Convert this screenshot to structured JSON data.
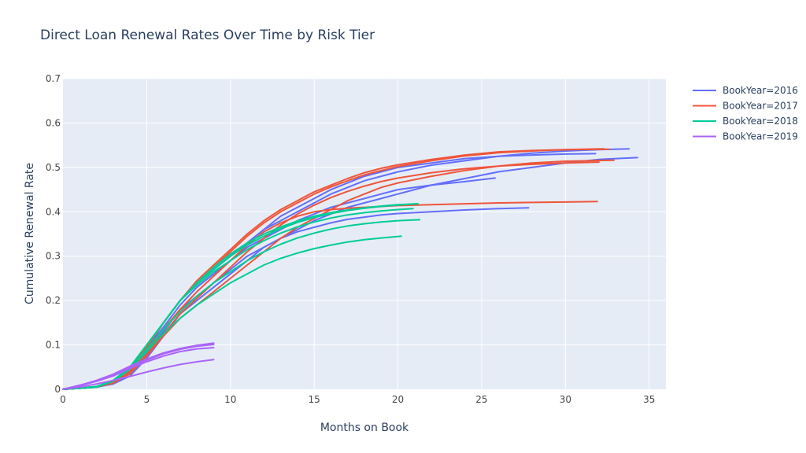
{
  "chart_data": {
    "type": "line",
    "title": "Direct Loan Renewal Rates Over Time by Risk Tier",
    "xlabel": "Months on Book",
    "ylabel": "Cumulative Renewal Rate",
    "xlim": [
      0,
      36
    ],
    "ylim": [
      0,
      0.7
    ],
    "xticks": [
      0,
      5,
      10,
      15,
      20,
      25,
      30,
      35
    ],
    "xtick_labels": [
      "0",
      "5",
      "10",
      "15",
      "20",
      "25",
      "30",
      "35"
    ],
    "yticks": [
      0,
      0.1,
      0.2,
      0.3,
      0.4,
      0.5,
      0.6,
      0.7
    ],
    "ytick_labels": [
      "0",
      "0.1",
      "0.2",
      "0.3",
      "0.4",
      "0.5",
      "0.6",
      "0.7"
    ],
    "grid": true,
    "legend_position": "top-right",
    "legend": [
      {
        "label": "BookYear=2016",
        "color": "#636efa"
      },
      {
        "label": "BookYear=2017",
        "color": "#ef553b"
      },
      {
        "label": "BookYear=2018",
        "color": "#00cc96"
      },
      {
        "label": "BookYear=2019",
        "color": "#ab63fa"
      }
    ],
    "series": [
      {
        "group": "BookYear=2016",
        "x": [
          0,
          2,
          3,
          4,
          5,
          6,
          7,
          8,
          9,
          10,
          11,
          12,
          13,
          14,
          15,
          16,
          17,
          18,
          19,
          20,
          22,
          24,
          26,
          28,
          30,
          32,
          33.8
        ],
        "y": [
          0,
          0.005,
          0.015,
          0.04,
          0.09,
          0.15,
          0.2,
          0.24,
          0.27,
          0.3,
          0.33,
          0.36,
          0.38,
          0.4,
          0.42,
          0.44,
          0.455,
          0.47,
          0.48,
          0.49,
          0.505,
          0.515,
          0.525,
          0.532,
          0.537,
          0.54,
          0.542
        ]
      },
      {
        "group": "BookYear=2016",
        "x": [
          0,
          2,
          3,
          4,
          5,
          6,
          7,
          8,
          9,
          10,
          11,
          12,
          13,
          14,
          15,
          16,
          17,
          18,
          19,
          20,
          22,
          24,
          26,
          28,
          30,
          32,
          34.3
        ],
        "y": [
          0,
          0.005,
          0.012,
          0.03,
          0.07,
          0.12,
          0.17,
          0.2,
          0.23,
          0.26,
          0.29,
          0.32,
          0.34,
          0.36,
          0.38,
          0.395,
          0.41,
          0.42,
          0.43,
          0.44,
          0.46,
          0.475,
          0.49,
          0.5,
          0.51,
          0.518,
          0.522
        ]
      },
      {
        "group": "BookYear=2016",
        "x": [
          0,
          2,
          3,
          4,
          5,
          6,
          7,
          8,
          9,
          10,
          11,
          12,
          13,
          14,
          15,
          16,
          17,
          18,
          19,
          20,
          21,
          22,
          24,
          25.8
        ],
        "y": [
          0,
          0.005,
          0.015,
          0.04,
          0.09,
          0.14,
          0.19,
          0.23,
          0.26,
          0.29,
          0.32,
          0.34,
          0.36,
          0.38,
          0.395,
          0.41,
          0.42,
          0.43,
          0.44,
          0.45,
          0.455,
          0.46,
          0.468,
          0.476
        ]
      },
      {
        "group": "BookYear=2016",
        "x": [
          0,
          2,
          3,
          4,
          5,
          6,
          7,
          8,
          9,
          10,
          11,
          12,
          13,
          14,
          15,
          16,
          17,
          18,
          19,
          20,
          22,
          24,
          26,
          27.8
        ],
        "y": [
          0,
          0.005,
          0.012,
          0.035,
          0.08,
          0.13,
          0.18,
          0.21,
          0.24,
          0.27,
          0.3,
          0.32,
          0.34,
          0.355,
          0.365,
          0.375,
          0.383,
          0.388,
          0.393,
          0.396,
          0.4,
          0.404,
          0.407,
          0.409
        ]
      },
      {
        "group": "BookYear=2016",
        "x": [
          0,
          2,
          3,
          4,
          5,
          6,
          7,
          8,
          9,
          10,
          11,
          12,
          13,
          14,
          15,
          16,
          17,
          18,
          19,
          20,
          22,
          24,
          26,
          28,
          30,
          31.8
        ],
        "y": [
          0,
          0.005,
          0.015,
          0.04,
          0.09,
          0.15,
          0.2,
          0.24,
          0.27,
          0.3,
          0.33,
          0.36,
          0.39,
          0.41,
          0.43,
          0.45,
          0.465,
          0.48,
          0.49,
          0.5,
          0.51,
          0.52,
          0.525,
          0.528,
          0.53,
          0.531
        ]
      },
      {
        "group": "BookYear=2017",
        "x": [
          0,
          2,
          3,
          4,
          5,
          6,
          7,
          8,
          9,
          10,
          11,
          12,
          13,
          14,
          15,
          16,
          17,
          18,
          19,
          20,
          22,
          24,
          26,
          28,
          30,
          32.3
        ],
        "y": [
          0,
          0.006,
          0.018,
          0.045,
          0.095,
          0.15,
          0.2,
          0.245,
          0.28,
          0.315,
          0.35,
          0.38,
          0.405,
          0.425,
          0.445,
          0.46,
          0.475,
          0.488,
          0.498,
          0.506,
          0.518,
          0.528,
          0.535,
          0.538,
          0.54,
          0.542
        ]
      },
      {
        "group": "BookYear=2017",
        "x": [
          0,
          2,
          3,
          4,
          5,
          6,
          7,
          8,
          9,
          10,
          11,
          12,
          13,
          14,
          15,
          16,
          17,
          18,
          19,
          20,
          22,
          24,
          26,
          28,
          30,
          32.6
        ],
        "y": [
          0,
          0.006,
          0.018,
          0.045,
          0.095,
          0.15,
          0.2,
          0.24,
          0.275,
          0.31,
          0.345,
          0.375,
          0.4,
          0.42,
          0.44,
          0.456,
          0.47,
          0.483,
          0.493,
          0.502,
          0.515,
          0.526,
          0.533,
          0.537,
          0.54,
          0.541
        ]
      },
      {
        "group": "BookYear=2017",
        "x": [
          0,
          2,
          3,
          4,
          5,
          6,
          7,
          8,
          9,
          10,
          11,
          12,
          13,
          14,
          15,
          16,
          17,
          18,
          19,
          20,
          22,
          24,
          26,
          28,
          30,
          32.9
        ],
        "y": [
          0,
          0.005,
          0.014,
          0.035,
          0.075,
          0.12,
          0.16,
          0.19,
          0.22,
          0.25,
          0.28,
          0.31,
          0.34,
          0.365,
          0.385,
          0.405,
          0.425,
          0.44,
          0.455,
          0.465,
          0.48,
          0.493,
          0.503,
          0.51,
          0.514,
          0.516
        ]
      },
      {
        "group": "BookYear=2017",
        "x": [
          0,
          2,
          3,
          4,
          5,
          6,
          7,
          8,
          9,
          10,
          11,
          12,
          13,
          14,
          15,
          16,
          17,
          18,
          19,
          20,
          22,
          24,
          26,
          28,
          30,
          31.9
        ],
        "y": [
          0,
          0.005,
          0.016,
          0.04,
          0.085,
          0.135,
          0.18,
          0.22,
          0.255,
          0.29,
          0.325,
          0.355,
          0.375,
          0.39,
          0.4,
          0.405,
          0.408,
          0.41,
          0.412,
          0.414,
          0.416,
          0.418,
          0.42,
          0.421,
          0.422,
          0.423
        ]
      },
      {
        "group": "BookYear=2017",
        "x": [
          0,
          2,
          3,
          4,
          5,
          6,
          7,
          8,
          9,
          10,
          11,
          12,
          13,
          14,
          15,
          16,
          17,
          18,
          19,
          20,
          22,
          24,
          26,
          28,
          30,
          32
        ],
        "y": [
          0,
          0.005,
          0.014,
          0.036,
          0.078,
          0.125,
          0.17,
          0.205,
          0.24,
          0.275,
          0.31,
          0.34,
          0.37,
          0.395,
          0.415,
          0.432,
          0.446,
          0.458,
          0.468,
          0.476,
          0.488,
          0.497,
          0.503,
          0.507,
          0.51,
          0.512
        ]
      },
      {
        "group": "BookYear=2018",
        "x": [
          0,
          2,
          3,
          4,
          5,
          6,
          7,
          8,
          9,
          10,
          11,
          12,
          13,
          14,
          15,
          16,
          17,
          18,
          19,
          20,
          21.1
        ],
        "y": [
          0,
          0.006,
          0.02,
          0.05,
          0.1,
          0.15,
          0.2,
          0.24,
          0.27,
          0.3,
          0.325,
          0.345,
          0.362,
          0.376,
          0.387,
          0.396,
          0.403,
          0.408,
          0.412,
          0.415,
          0.418
        ]
      },
      {
        "group": "BookYear=2018",
        "x": [
          0,
          2,
          3,
          4,
          5,
          6,
          7,
          8,
          9,
          10,
          11,
          12,
          13,
          14,
          15,
          16,
          17,
          18,
          19,
          20,
          20.9
        ],
        "y": [
          0,
          0.006,
          0.02,
          0.05,
          0.1,
          0.15,
          0.2,
          0.235,
          0.265,
          0.29,
          0.315,
          0.335,
          0.352,
          0.366,
          0.377,
          0.386,
          0.393,
          0.398,
          0.402,
          0.405,
          0.407
        ]
      },
      {
        "group": "BookYear=2018",
        "x": [
          0,
          2,
          3,
          4,
          5,
          6,
          7,
          8,
          9,
          10,
          11,
          12,
          13,
          14,
          15,
          16,
          17,
          18,
          19,
          20,
          21.3
        ],
        "y": [
          0,
          0.005,
          0.018,
          0.045,
          0.09,
          0.135,
          0.175,
          0.21,
          0.24,
          0.265,
          0.29,
          0.31,
          0.327,
          0.341,
          0.352,
          0.361,
          0.368,
          0.373,
          0.377,
          0.38,
          0.382
        ]
      },
      {
        "group": "BookYear=2018",
        "x": [
          0,
          2,
          3,
          4,
          5,
          6,
          7,
          8,
          9,
          10,
          11,
          12,
          13,
          14,
          15,
          16,
          17,
          18,
          19,
          20.2
        ],
        "y": [
          0,
          0.005,
          0.018,
          0.045,
          0.085,
          0.125,
          0.16,
          0.19,
          0.215,
          0.24,
          0.26,
          0.28,
          0.295,
          0.307,
          0.317,
          0.325,
          0.332,
          0.337,
          0.341,
          0.345
        ]
      },
      {
        "group": "BookYear=2018",
        "x": [
          0,
          2,
          3,
          4,
          5,
          6,
          7,
          8,
          9,
          10,
          11,
          12,
          13,
          14,
          15,
          16,
          17,
          18,
          19,
          20,
          21.2
        ],
        "y": [
          0,
          0.006,
          0.02,
          0.05,
          0.1,
          0.15,
          0.2,
          0.24,
          0.275,
          0.305,
          0.33,
          0.35,
          0.366,
          0.379,
          0.39,
          0.398,
          0.404,
          0.409,
          0.413,
          0.416,
          0.418
        ]
      },
      {
        "group": "BookYear=2019",
        "x": [
          0,
          1,
          2,
          3,
          4,
          5,
          6,
          7,
          8,
          9
        ],
        "y": [
          0,
          0.009,
          0.02,
          0.034,
          0.052,
          0.068,
          0.082,
          0.092,
          0.099,
          0.104
        ]
      },
      {
        "group": "BookYear=2019",
        "x": [
          0,
          1,
          2,
          3,
          4,
          5,
          6,
          7,
          8,
          9
        ],
        "y": [
          0,
          0.009,
          0.019,
          0.032,
          0.05,
          0.066,
          0.08,
          0.09,
          0.097,
          0.101
        ]
      },
      {
        "group": "BookYear=2019",
        "x": [
          0,
          1,
          2,
          3,
          4,
          5,
          6,
          7,
          8,
          9
        ],
        "y": [
          0,
          0.008,
          0.018,
          0.03,
          0.047,
          0.062,
          0.075,
          0.085,
          0.091,
          0.094
        ]
      },
      {
        "group": "BookYear=2019",
        "x": [
          0,
          1,
          2,
          3,
          4,
          5,
          6,
          7,
          8,
          9
        ],
        "y": [
          0,
          0.005,
          0.012,
          0.02,
          0.029,
          0.039,
          0.048,
          0.056,
          0.062,
          0.067
        ]
      }
    ]
  }
}
